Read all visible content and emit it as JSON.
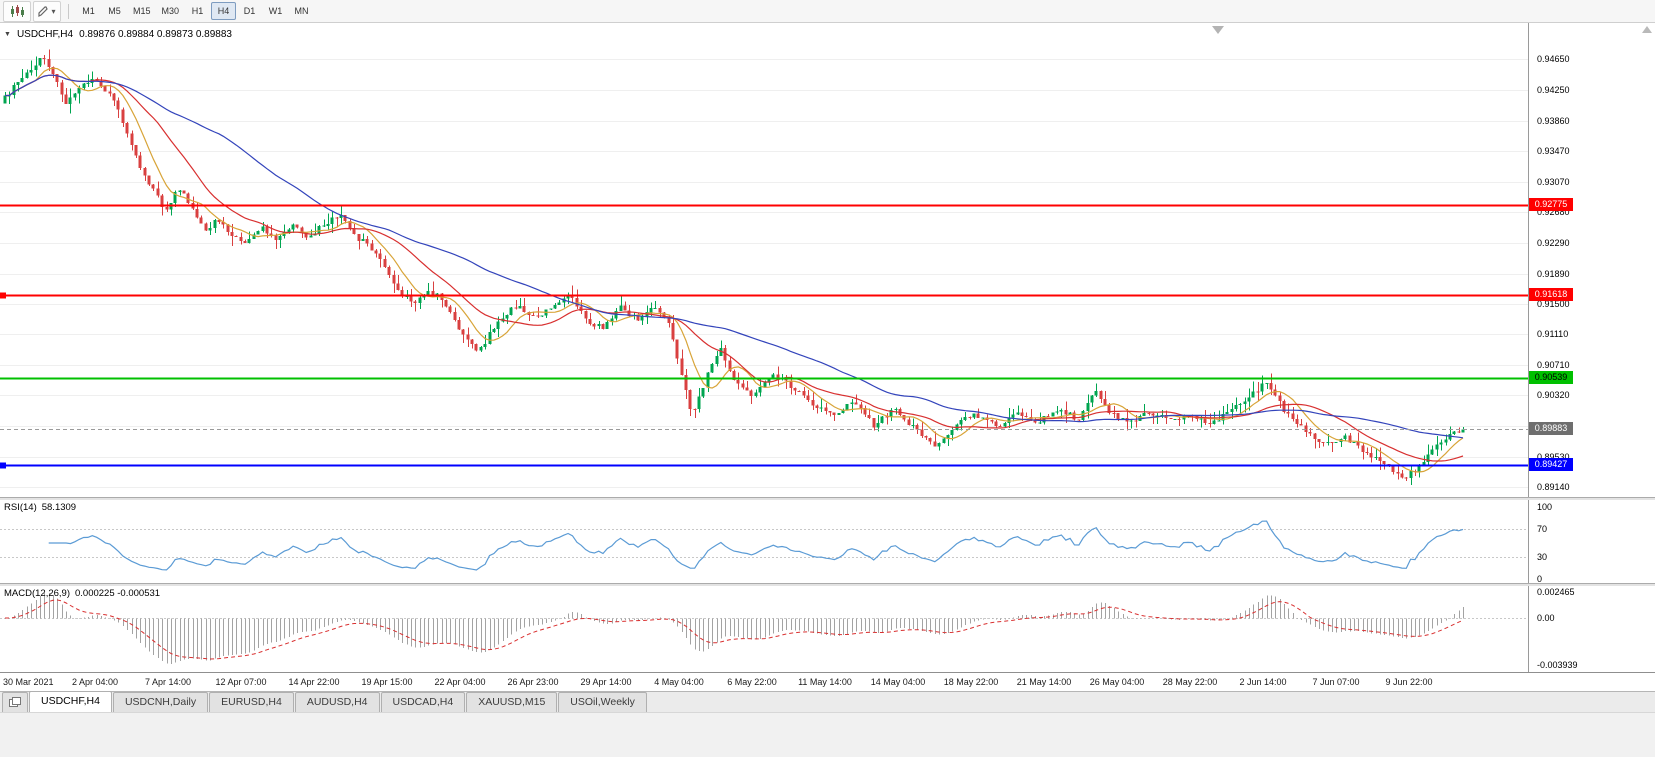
{
  "toolbar": {
    "timeframes": [
      "M1",
      "M5",
      "M15",
      "M30",
      "H1",
      "H4",
      "D1",
      "W1",
      "MN"
    ],
    "active_timeframe": "H4",
    "objects_button": {
      "caret": "▾"
    }
  },
  "chart": {
    "collapse_icon": "▼",
    "title": "USDCHF,H4",
    "ohlc": "0.89876 0.89884 0.89873 0.89883",
    "current_price": "0.89883",
    "current_price_value": 0.89883,
    "current_price_badge": {
      "bg": "#6e6e6e",
      "text_color": "#ffffff"
    },
    "price_axis": [
      "0.94650",
      "0.94250",
      "0.93860",
      "0.93470",
      "0.93070",
      "0.92680",
      "0.92290",
      "0.91890",
      "0.91500",
      "0.91110",
      "0.90710",
      "0.90320",
      "0.89930",
      "0.89530",
      "0.89140"
    ],
    "hlines": [
      {
        "value": 0.92775,
        "label": "0.92775",
        "color": "#ff0000",
        "text_color": "#ffffff",
        "width": 2,
        "handle": false
      },
      {
        "value": 0.91618,
        "label": "0.91618",
        "color": "#ff0000",
        "text_color": "#ffffff",
        "width": 2,
        "handle": true
      },
      {
        "value": 0.90539,
        "label": "0.90539",
        "color": "#00c000",
        "text_color": "#000000",
        "width": 2,
        "handle": false
      },
      {
        "value": 0.89427,
        "label": "0.89427",
        "color": "#0000ff",
        "text_color": "#ffffff",
        "width": 2,
        "handle": true
      }
    ],
    "time_axis": [
      "30 Mar 2021",
      "2 Apr 04:00",
      "7 Apr 14:00",
      "12 Apr 07:00",
      "14 Apr 22:00",
      "19 Apr 15:00",
      "22 Apr 04:00",
      "26 Apr 23:00",
      "29 Apr 14:00",
      "4 May 04:00",
      "6 May 22:00",
      "11 May 14:00",
      "14 May 04:00",
      "18 May 22:00",
      "21 May 14:00",
      "26 May 04:00",
      "28 May 22:00",
      "2 Jun 14:00",
      "7 Jun 07:00",
      "9 Jun 22:00"
    ]
  },
  "rsi": {
    "label": "RSI(14)",
    "value": "58.1309",
    "axis_labels": [
      "100",
      "70",
      "30",
      "0"
    ],
    "axis_values": [
      100,
      70,
      30,
      0
    ],
    "levels": [
      70,
      30
    ],
    "color": "#5b9bd5"
  },
  "macd": {
    "label": "MACD(12,26,9)",
    "values": "0.000225 -0.000531",
    "axis_top": "0.002465",
    "axis_zero": "0.00",
    "axis_bottom": "-0.003939",
    "histogram_color": "#a3a3a3",
    "signal_color": "#d93030"
  },
  "tabs": [
    {
      "label": "USDCHF,H4",
      "active": true
    },
    {
      "label": "USDCNH,Daily",
      "active": false
    },
    {
      "label": "EURUSD,H4",
      "active": false
    },
    {
      "label": "AUDUSD,H4",
      "active": false
    },
    {
      "label": "USDCAD,H4",
      "active": false
    },
    {
      "label": "XAUUSD,M15",
      "active": false
    },
    {
      "label": "USOil,Weekly",
      "active": false
    }
  ],
  "chart_data": {
    "type": "candlestick",
    "symbol": "USDCHF",
    "timeframe": "H4",
    "x_range": [
      "30 Mar 2021",
      "10 Jun 2021"
    ],
    "ylim": [
      0.8901,
      0.9512
    ],
    "num_candles": 335,
    "last_close": 0.89883,
    "up_color": "#00a550",
    "down_color": "#d94040",
    "moving_averages": [
      {
        "period": 8,
        "color": "#d8a438"
      },
      {
        "period": 20,
        "color": "#d83030"
      },
      {
        "period": 50,
        "color": "#3344bb"
      }
    ],
    "horizontal_levels": [
      0.92775,
      0.91618,
      0.90539,
      0.89427
    ],
    "indicator_readings": {
      "rsi_14": 58.1309,
      "macd_main": 0.000225,
      "macd_signal": -0.000531
    },
    "price_path": [
      [
        0.0,
        0.9408
      ],
      [
        0.01,
        0.9432
      ],
      [
        0.021,
        0.9452
      ],
      [
        0.029,
        0.9468
      ],
      [
        0.036,
        0.9445
      ],
      [
        0.045,
        0.9408
      ],
      [
        0.053,
        0.9425
      ],
      [
        0.062,
        0.944
      ],
      [
        0.071,
        0.9428
      ],
      [
        0.08,
        0.9405
      ],
      [
        0.088,
        0.936
      ],
      [
        0.096,
        0.9322
      ],
      [
        0.105,
        0.9295
      ],
      [
        0.113,
        0.9268
      ],
      [
        0.121,
        0.9298
      ],
      [
        0.13,
        0.928
      ],
      [
        0.139,
        0.9245
      ],
      [
        0.149,
        0.9258
      ],
      [
        0.158,
        0.9238
      ],
      [
        0.168,
        0.9228
      ],
      [
        0.178,
        0.9248
      ],
      [
        0.189,
        0.9232
      ],
      [
        0.199,
        0.925
      ],
      [
        0.211,
        0.9236
      ],
      [
        0.222,
        0.9255
      ],
      [
        0.233,
        0.9262
      ],
      [
        0.244,
        0.9235
      ],
      [
        0.252,
        0.9225
      ],
      [
        0.261,
        0.9205
      ],
      [
        0.271,
        0.917
      ],
      [
        0.281,
        0.915
      ],
      [
        0.293,
        0.9168
      ],
      [
        0.304,
        0.9152
      ],
      [
        0.315,
        0.9112
      ],
      [
        0.327,
        0.9088
      ],
      [
        0.34,
        0.9128
      ],
      [
        0.353,
        0.9148
      ],
      [
        0.367,
        0.9132
      ],
      [
        0.381,
        0.915
      ],
      [
        0.389,
        0.9162
      ],
      [
        0.4,
        0.913
      ],
      [
        0.412,
        0.9118
      ],
      [
        0.423,
        0.9148
      ],
      [
        0.436,
        0.9128
      ],
      [
        0.446,
        0.9148
      ],
      [
        0.456,
        0.9128
      ],
      [
        0.466,
        0.9058
      ],
      [
        0.473,
        0.9008
      ],
      [
        0.48,
        0.904
      ],
      [
        0.487,
        0.9075
      ],
      [
        0.492,
        0.9092
      ],
      [
        0.501,
        0.9055
      ],
      [
        0.514,
        0.9032
      ],
      [
        0.528,
        0.906
      ],
      [
        0.542,
        0.9042
      ],
      [
        0.555,
        0.902
      ],
      [
        0.569,
        0.9005
      ],
      [
        0.583,
        0.9028
      ],
      [
        0.597,
        0.8992
      ],
      [
        0.61,
        0.9015
      ],
      [
        0.624,
        0.8992
      ],
      [
        0.638,
        0.8965
      ],
      [
        0.652,
        0.8992
      ],
      [
        0.665,
        0.9008
      ],
      [
        0.682,
        0.8992
      ],
      [
        0.696,
        0.901
      ],
      [
        0.71,
        0.8998
      ],
      [
        0.724,
        0.9015
      ],
      [
        0.737,
        0.9
      ],
      [
        0.748,
        0.9038
      ],
      [
        0.758,
        0.9012
      ],
      [
        0.772,
        0.8995
      ],
      [
        0.785,
        0.9012
      ],
      [
        0.799,
        0.8998
      ],
      [
        0.813,
        0.901
      ],
      [
        0.826,
        0.8995
      ],
      [
        0.84,
        0.9012
      ],
      [
        0.854,
        0.903
      ],
      [
        0.866,
        0.905
      ],
      [
        0.878,
        0.9012
      ],
      [
        0.892,
        0.8988
      ],
      [
        0.905,
        0.897
      ],
      [
        0.919,
        0.8978
      ],
      [
        0.933,
        0.8958
      ],
      [
        0.947,
        0.8942
      ],
      [
        0.96,
        0.8925
      ],
      [
        0.971,
        0.8942
      ],
      [
        0.984,
        0.8972
      ],
      [
        1.0,
        0.89883
      ]
    ]
  }
}
